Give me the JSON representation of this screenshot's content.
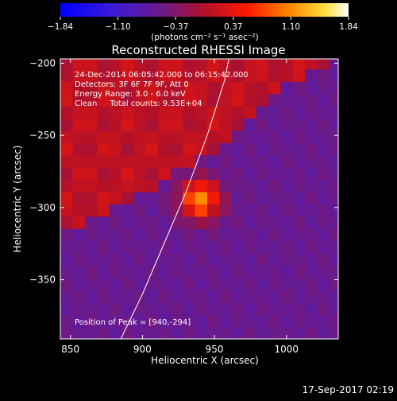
{
  "chart_data": {
    "type": "heatmap",
    "title": "Reconstructed RHESSI Image",
    "xlabel": "Heliocentric X (arcsec)",
    "ylabel": "Heliocentric Y (arcsec)",
    "xlim": [
      843,
      1036
    ],
    "ylim": [
      -391,
      -197
    ],
    "xticks": [
      850,
      900,
      950,
      1000
    ],
    "yticks": [
      -200,
      -250,
      -300,
      -350
    ],
    "colorbar": {
      "range": [
        -1.84,
        1.84
      ],
      "ticks": [
        "−1.84",
        "−1.10",
        "−0.37",
        "0.37",
        "1.10",
        "1.84"
      ],
      "units": "(photons cm⁻² s⁻¹ asec⁻²)",
      "colormap": "blue-purple-red-yellow-white"
    },
    "annotations": [
      "24-Dec-2014 06:05:42.000 to 06:15:42.000",
      "Detectors: 3F 6F 7F 9F, Att 0",
      "Energy Range: 3.0 - 6.0 keV",
      "Clean     Total counts: 9.53E+04"
    ],
    "peak_label": "Position of Peak = [940,-294]",
    "peak": {
      "x": 940,
      "y": -294
    },
    "limb_curve": [
      [
        885,
        -391
      ],
      [
        900,
        -360
      ],
      [
        915,
        -325
      ],
      [
        930,
        -290
      ],
      [
        945,
        -250
      ],
      [
        957,
        -212
      ],
      [
        960,
        -197
      ]
    ],
    "timestamp": "17-Sep-2017 02:19"
  }
}
